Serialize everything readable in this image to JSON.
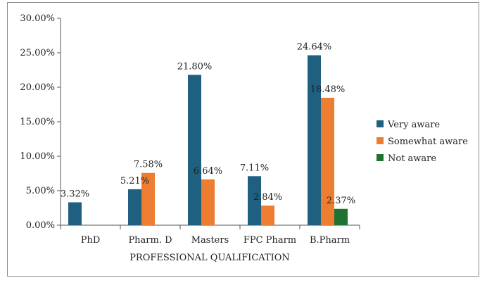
{
  "chart_data": {
    "type": "bar",
    "title": "",
    "xlabel": "PROFESSIONAL QUALIFICATION",
    "ylabel": "",
    "ylim": [
      0,
      30
    ],
    "yticks": [
      0,
      5,
      10,
      15,
      20,
      25,
      30
    ],
    "ytick_labels": [
      "0.00%",
      "5.00%",
      "10.00%",
      "15.00%",
      "20.00%",
      "25.00%",
      "30.00%"
    ],
    "categories": [
      "PhD",
      "Pharm. D",
      "Masters",
      "FPC Pharm",
      "B.Pharm"
    ],
    "series": [
      {
        "name": "Very aware",
        "color": "#1f5f80",
        "values": [
          3.32,
          5.21,
          21.8,
          7.11,
          24.64
        ],
        "labels": [
          "3.32%",
          "5.21%",
          "21.80%",
          "7.11%",
          "24.64%"
        ]
      },
      {
        "name": "Somewhat aware",
        "color": "#ed7d31",
        "values": [
          null,
          7.58,
          6.64,
          2.84,
          18.48
        ],
        "labels": [
          null,
          "7.58%",
          "6.64%",
          "2.84%",
          "18.48%"
        ]
      },
      {
        "name": "Not aware",
        "color": "#1e7332",
        "values": [
          null,
          null,
          null,
          null,
          2.37
        ],
        "labels": [
          null,
          null,
          null,
          null,
          "2.37%"
        ]
      }
    ],
    "legend_position": "right",
    "grid": false
  }
}
